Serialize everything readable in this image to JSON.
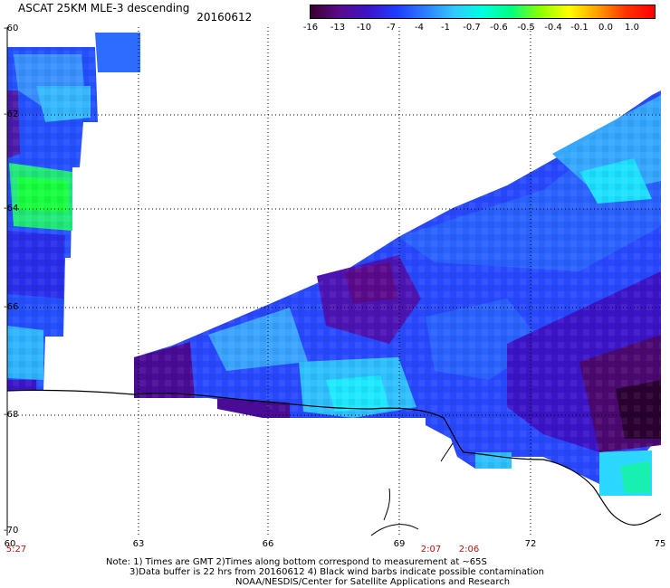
{
  "header": {
    "title": "ASCAT 25KM MLE-3 descending",
    "date": "20160612"
  },
  "colorbar": {
    "labels": [
      "-16",
      "-13",
      "-10",
      "-7",
      "-4",
      "-1",
      "-0.7",
      "-0.6",
      "-0.5",
      "-0.4",
      "-0.1",
      "0.0",
      "1.0"
    ],
    "colors": [
      "#3a0030",
      "#5a0a8a",
      "#3c14c8",
      "#1e3cff",
      "#2d7dff",
      "#32c8ff",
      "#00ffe0",
      "#00ff80",
      "#8cff00",
      "#ffff00",
      "#ffa000",
      "#ff3200",
      "#ff0000"
    ]
  },
  "axes": {
    "lat_labels": [
      "-60",
      "-62",
      "-64",
      "-66",
      "-68",
      "-70"
    ],
    "lon_labels": [
      "60",
      "63",
      "66",
      "69",
      "72",
      "75"
    ]
  },
  "times": [
    "5:27",
    "2:07",
    "2:06"
  ],
  "footer": {
    "line1": "Note: 1) Times are GMT 2)Times along bottom correspond to measurement at ~65S",
    "line2": "3)Data buffer is 22 hrs from 20160612 4) Black wind barbs indicate possible contamination",
    "line3": "NOAA/NESDIS/Center for Satellite Applications and Research"
  }
}
